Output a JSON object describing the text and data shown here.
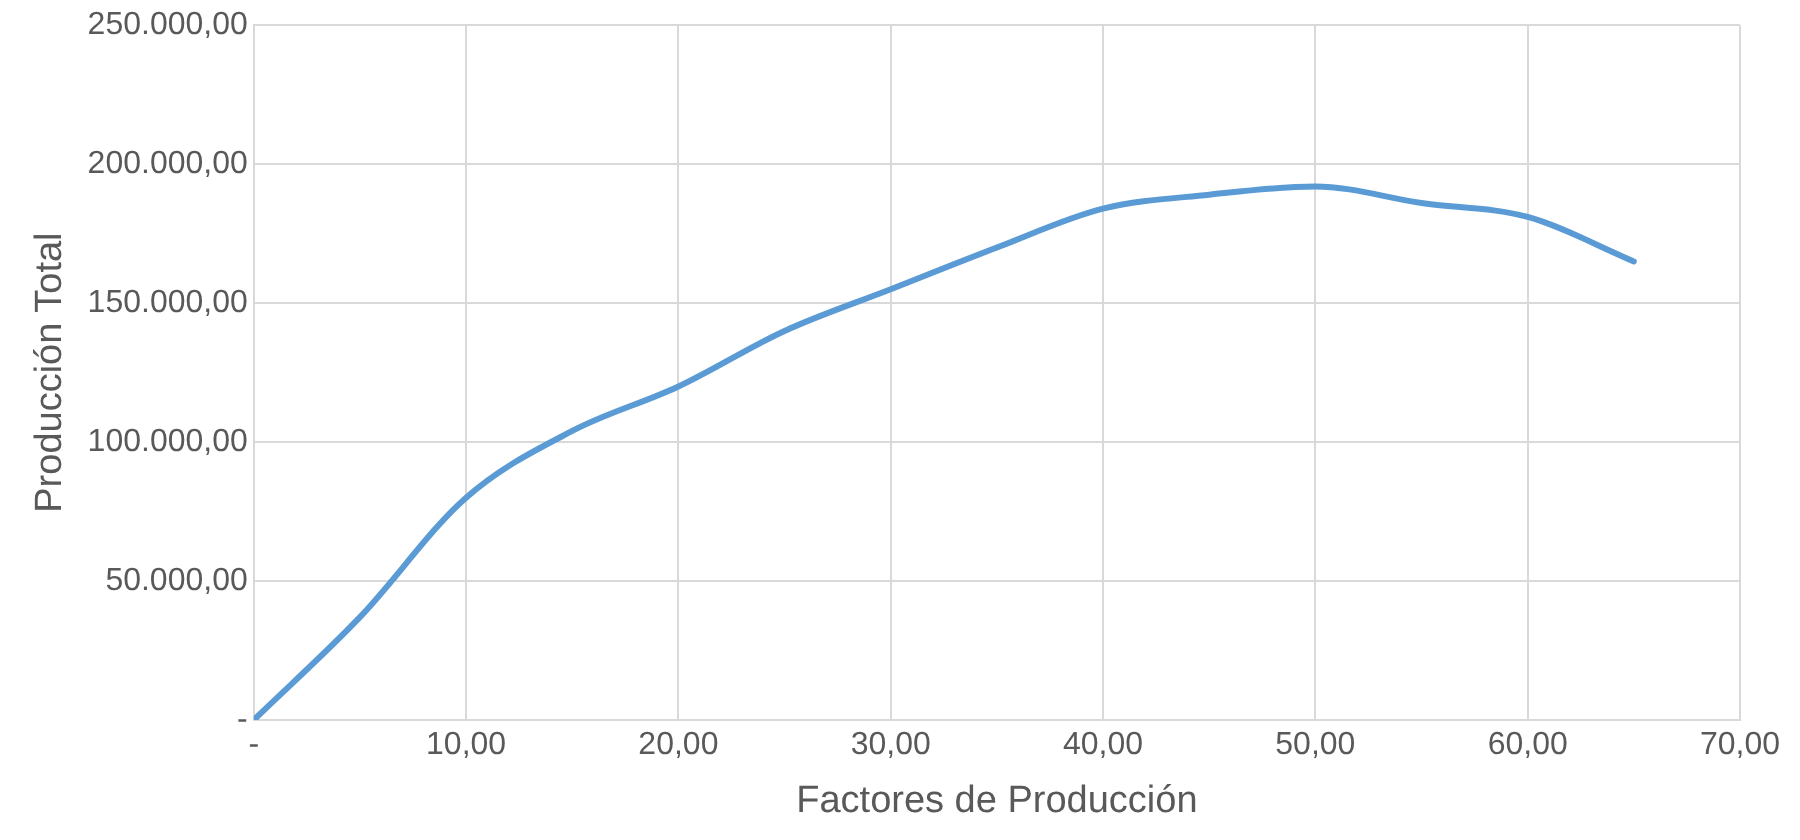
{
  "chart_data": {
    "type": "line",
    "xlabel": "Factores de Producción",
    "ylabel": "Producción Total",
    "x": [
      0,
      5,
      10,
      15,
      20,
      25,
      30,
      35,
      40,
      45,
      50,
      55,
      60,
      65
    ],
    "series": [
      {
        "color": "#5b9bd5",
        "values": [
          0,
          37000,
          80000,
          104000,
          120000,
          140000,
          155000,
          170000,
          184000,
          189000,
          192000,
          186000,
          181000,
          165000
        ]
      }
    ],
    "xlim": [
      0,
      70
    ],
    "xticks": [
      {
        "value": 0,
        "label": "-"
      },
      {
        "value": 10,
        "label": "10,00"
      },
      {
        "value": 20,
        "label": "20,00"
      },
      {
        "value": 30,
        "label": "30,00"
      },
      {
        "value": 40,
        "label": "40,00"
      },
      {
        "value": 50,
        "label": "50,00"
      },
      {
        "value": 60,
        "label": "60,00"
      },
      {
        "value": 70,
        "label": "70,00"
      }
    ],
    "ylim": [
      0,
      250000
    ],
    "yticks": [
      {
        "value": 0,
        "label": "-"
      },
      {
        "value": 50000,
        "label": "50.000,00"
      },
      {
        "value": 100000,
        "label": "100.000,00"
      },
      {
        "value": 150000,
        "label": "150.000,00"
      },
      {
        "value": 200000,
        "label": "200.000,00"
      },
      {
        "value": 250000,
        "label": "250.000,00"
      }
    ],
    "grid": true,
    "legend": false,
    "marker": "none",
    "line_style": "solid"
  }
}
